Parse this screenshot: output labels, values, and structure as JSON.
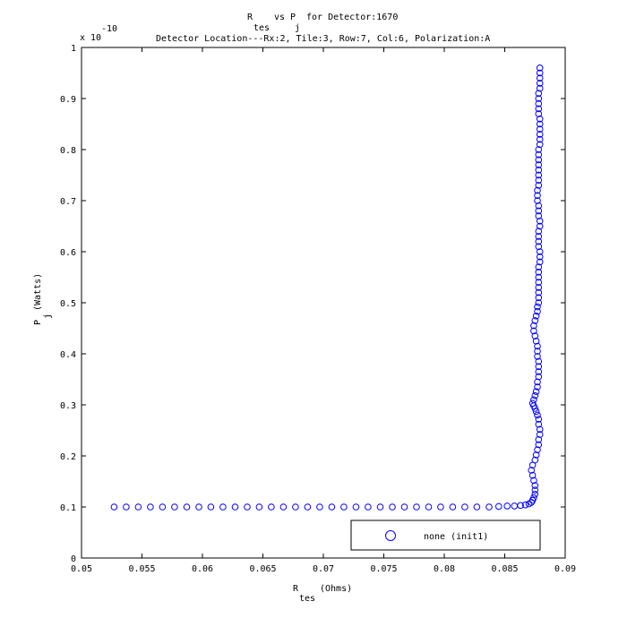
{
  "chart_data": {
    "type": "scatter",
    "title_line1_parts": [
      "R",
      "tes",
      "vs P",
      "j",
      "for Detector:1670"
    ],
    "title_line2": "Detector Location---Rx:2, Tile:3, Row:7, Col:6, Polarization:A",
    "xlabel_main": "R",
    "xlabel_sub": "tes",
    "xlabel_unit": "(Ohms)",
    "ylabel_main": "P",
    "ylabel_sub": "j",
    "ylabel_unit": "(Watts)",
    "y_multiplier_base": "x 10",
    "y_multiplier_exp": "-10",
    "xlim": [
      0.05,
      0.09
    ],
    "ylim": [
      0,
      1
    ],
    "xticks": [
      0.05,
      0.055,
      0.06,
      0.065,
      0.07,
      0.075,
      0.08,
      0.085,
      0.09
    ],
    "xtick_labels": [
      "0.05",
      "0.055",
      "0.06",
      "0.065",
      "0.07",
      "0.075",
      "0.08",
      "0.085",
      "0.09"
    ],
    "yticks": [
      0,
      0.1,
      0.2,
      0.3,
      0.4,
      0.5,
      0.6,
      0.7,
      0.8,
      0.9,
      1
    ],
    "ytick_labels": [
      "0",
      "0.1",
      "0.2",
      "0.3",
      "0.4",
      "0.5",
      "0.6",
      "0.7",
      "0.8",
      "0.9",
      "1"
    ],
    "grid": false,
    "legend_position": "bottom-right",
    "series": [
      {
        "name": "none (init1)",
        "color": "#0000ff",
        "marker": "open-circle",
        "x": [
          0.0527,
          0.0537,
          0.0547,
          0.0557,
          0.0567,
          0.0577,
          0.0587,
          0.0597,
          0.0607,
          0.0617,
          0.0627,
          0.0637,
          0.0647,
          0.0657,
          0.0667,
          0.0677,
          0.0687,
          0.0697,
          0.0707,
          0.0717,
          0.0727,
          0.0737,
          0.0747,
          0.0757,
          0.0767,
          0.0777,
          0.0787,
          0.0797,
          0.0807,
          0.0817,
          0.0827,
          0.0837,
          0.0845,
          0.0852,
          0.0858,
          0.0863,
          0.0867,
          0.087,
          0.0872,
          0.0873,
          0.0874,
          0.0875,
          0.0875,
          0.0875,
          0.0874,
          0.0873,
          0.0872,
          0.0873,
          0.0875,
          0.0876,
          0.0877,
          0.0878,
          0.0878,
          0.0879,
          0.0879,
          0.0878,
          0.0878,
          0.0877,
          0.0876,
          0.0875,
          0.0874,
          0.0873,
          0.0874,
          0.0875,
          0.0876,
          0.0877,
          0.0877,
          0.0878,
          0.0878,
          0.0878,
          0.0878,
          0.0877,
          0.0877,
          0.0877,
          0.0876,
          0.0875,
          0.0874,
          0.0874,
          0.0875,
          0.0876,
          0.0877,
          0.0877,
          0.0878,
          0.0878,
          0.0878,
          0.0878,
          0.0878,
          0.0878,
          0.0878,
          0.0878,
          0.0879,
          0.0879,
          0.0879,
          0.0878,
          0.0878,
          0.0878,
          0.0878,
          0.0879,
          0.0879,
          0.0878,
          0.0878,
          0.0878,
          0.0877,
          0.0877,
          0.0877,
          0.0878,
          0.0878,
          0.0878,
          0.0878,
          0.0878,
          0.0878,
          0.0878,
          0.0878,
          0.0879,
          0.0879,
          0.0879,
          0.0879,
          0.0879,
          0.0879,
          0.0878,
          0.0878,
          0.0878,
          0.0878,
          0.0878,
          0.0879,
          0.0879,
          0.0879,
          0.0879,
          0.0879
        ],
        "y": [
          0.1,
          0.1,
          0.1,
          0.1,
          0.1,
          0.1,
          0.1,
          0.1,
          0.1,
          0.1,
          0.1,
          0.1,
          0.1,
          0.1,
          0.1,
          0.1,
          0.1,
          0.1,
          0.1,
          0.1,
          0.1,
          0.1,
          0.1,
          0.1,
          0.1,
          0.1,
          0.1,
          0.1,
          0.1,
          0.1,
          0.1,
          0.1,
          0.101,
          0.102,
          0.102,
          0.103,
          0.104,
          0.106,
          0.109,
          0.113,
          0.118,
          0.125,
          0.133,
          0.142,
          0.152,
          0.162,
          0.172,
          0.182,
          0.192,
          0.202,
          0.212,
          0.222,
          0.232,
          0.242,
          0.252,
          0.262,
          0.272,
          0.28,
          0.287,
          0.293,
          0.298,
          0.303,
          0.31,
          0.318,
          0.326,
          0.335,
          0.345,
          0.355,
          0.365,
          0.375,
          0.385,
          0.395,
          0.405,
          0.415,
          0.425,
          0.435,
          0.445,
          0.455,
          0.465,
          0.474,
          0.483,
          0.492,
          0.5,
          0.51,
          0.52,
          0.53,
          0.54,
          0.55,
          0.56,
          0.57,
          0.58,
          0.59,
          0.6,
          0.61,
          0.62,
          0.63,
          0.64,
          0.65,
          0.66,
          0.67,
          0.68,
          0.69,
          0.7,
          0.71,
          0.72,
          0.73,
          0.74,
          0.75,
          0.76,
          0.77,
          0.78,
          0.79,
          0.8,
          0.81,
          0.82,
          0.83,
          0.84,
          0.85,
          0.86,
          0.87,
          0.88,
          0.89,
          0.9,
          0.91,
          0.92,
          0.93,
          0.94,
          0.95,
          0.96
        ]
      }
    ]
  }
}
